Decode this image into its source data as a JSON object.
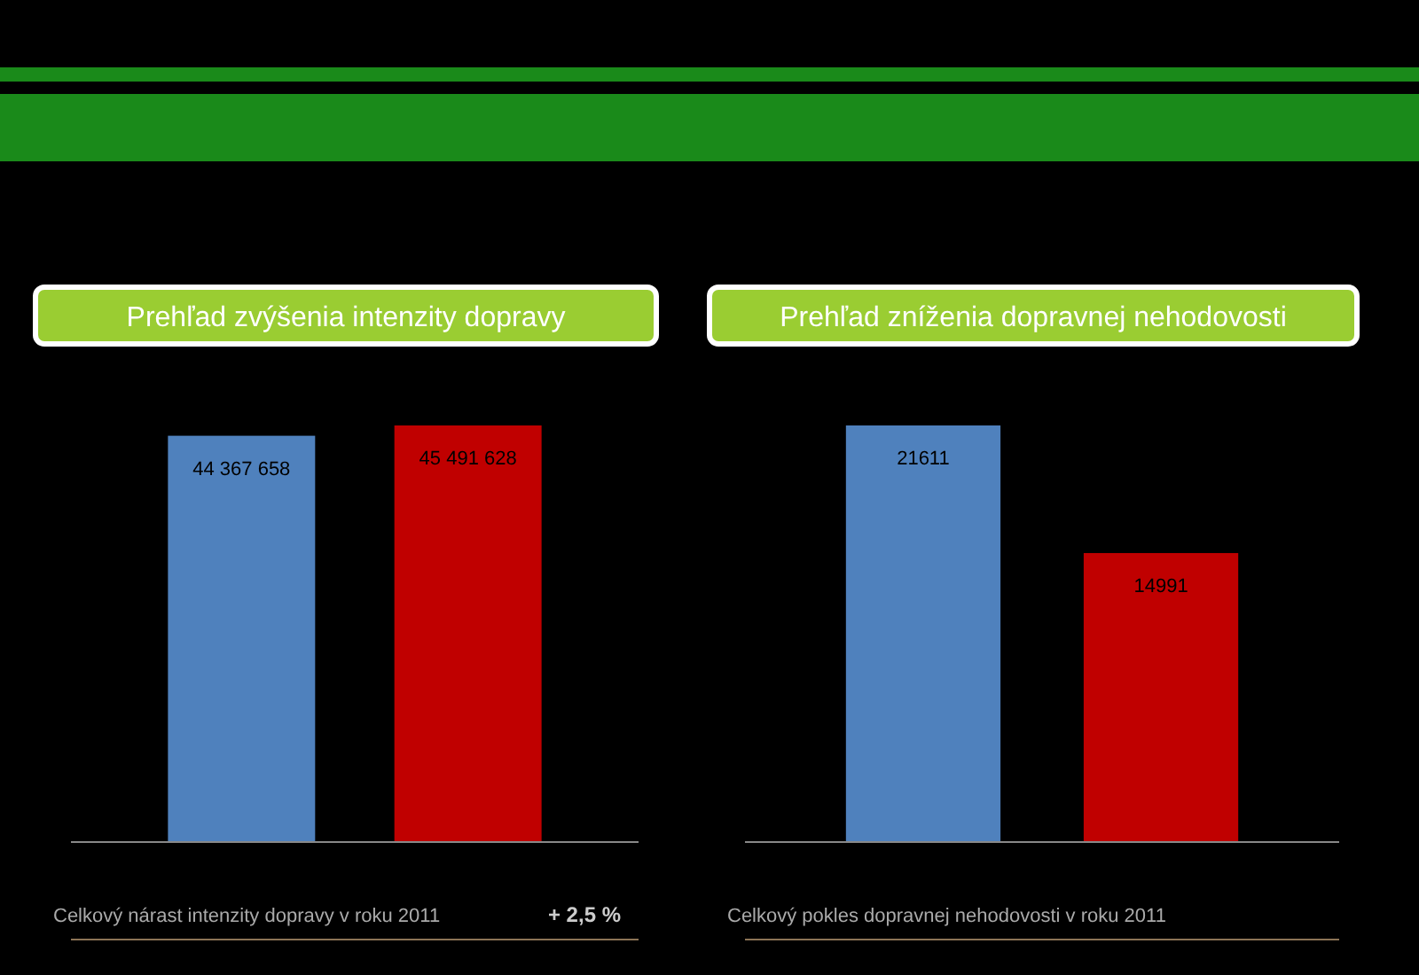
{
  "chart_data": [
    {
      "type": "bar",
      "title": "Prehľad zvýšenia intenzity dopravy",
      "categories": [
        null,
        null
      ],
      "values": [
        44367658,
        45491628
      ],
      "colors": [
        "#4f81bd",
        "#c00000"
      ],
      "value_labels": [
        "44 367 658",
        "45 491 628"
      ],
      "annotations": [
        "Celkový nárast intenzity dopravy v roku 2011",
        "+ 2,5 %"
      ]
    },
    {
      "type": "bar",
      "title": "Prehľad zníženia dopravnej nehodovosti",
      "categories": [
        null,
        null
      ],
      "values": [
        21611,
        14991
      ],
      "colors": [
        "#4f81bd",
        "#c00000"
      ],
      "data_labels": true,
      "annotations": [
        "Celkový pokles dopravnej nehodovosti v roku 2011"
      ]
    }
  ]
}
